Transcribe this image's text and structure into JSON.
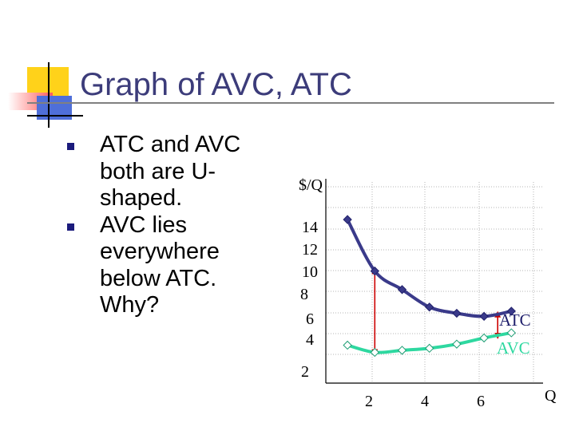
{
  "slide": {
    "title": "Graph of AVC, ATC",
    "bullets": [
      "ATC and AVC both are U-shaped.",
      "AVC lies everywhere below ATC. Why?"
    ],
    "colors": {
      "title": "#3c3c7a",
      "bullet_marker": "#1b1b7c",
      "deco_yellow": "#ffd21a",
      "deco_red": "#ff5a5a",
      "deco_blue": "#4f6fd9"
    }
  },
  "chart_data": {
    "type": "line",
    "ylabel": "$/Q",
    "xlabel": "Q",
    "y_tick_labels": [
      "14",
      "12",
      "10",
      "8",
      "6",
      "4",
      "2"
    ],
    "x_tick_labels": [
      "2",
      "4",
      "6"
    ],
    "series": [
      {
        "name": "ATC",
        "color": "#3a3a8a",
        "x": [
          0.5,
          1.5,
          2.5,
          3.5,
          4.5,
          5.5,
          6.5
        ],
        "y": [
          14.8,
          9.8,
          8.0,
          6.3,
          5.7,
          5.4,
          5.9
        ]
      },
      {
        "name": "AVC",
        "color": "#2ed8a0",
        "x": [
          0.5,
          1.5,
          2.5,
          3.5,
          4.5,
          5.5,
          6.5
        ],
        "y": [
          2.6,
          1.9,
          2.1,
          2.3,
          2.7,
          3.3,
          3.8
        ]
      }
    ],
    "arrows": [
      {
        "x": 1.5,
        "from": 1.9,
        "to": 9.8,
        "color": "#cc0000"
      },
      {
        "x": 6.0,
        "from": 3.5,
        "to": 5.6,
        "color": "#cc0000"
      }
    ],
    "grid": true
  }
}
